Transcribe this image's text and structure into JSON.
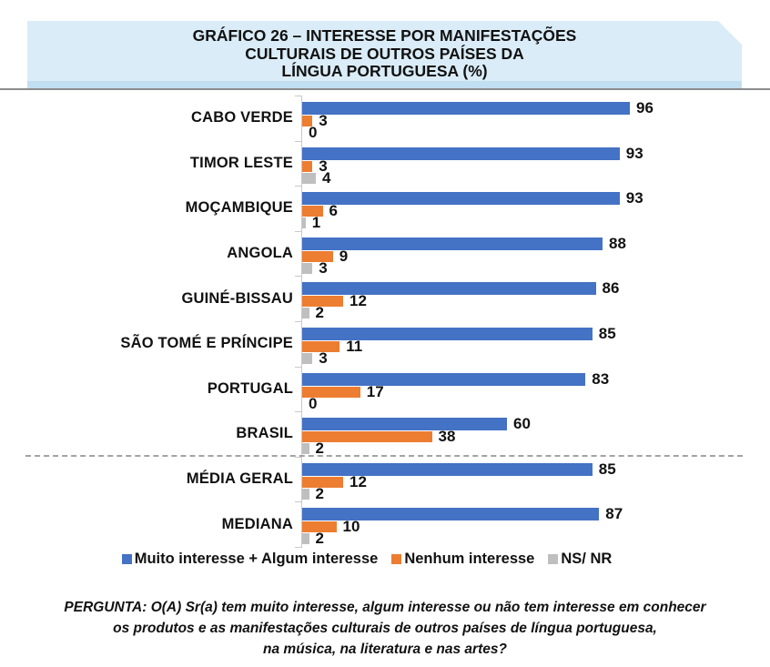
{
  "title": {
    "text": "GRÁFICO 26 – INTERESSE POR MANIFESTAÇÕES\nCULTURAIS DE OUTROS PAÍSES DA\nLÍNGUA PORTUGUESA (%)"
  },
  "chart_data": {
    "type": "bar",
    "orientation": "horizontal",
    "title": "GRÁFICO 26 – INTERESSE POR MANIFESTAÇÕES CULTURAIS DE OUTROS PAÍSES DA LÍNGUA PORTUGUESA (%)",
    "unit": "%",
    "categories": [
      "CABO VERDE",
      "TIMOR LESTE",
      "MOÇAMBIQUE",
      "ANGOLA",
      "GUINÉ-BISSAU",
      "SÃO TOMÉ E PRÍNCIPE",
      "PORTUGAL",
      "BRASIL",
      "MÉDIA GERAL",
      "MEDIANA"
    ],
    "series": [
      {
        "name": "Muito interesse + Algum interesse",
        "color": "#4472C4",
        "values": [
          96,
          93,
          93,
          88,
          86,
          85,
          83,
          60,
          85,
          87
        ]
      },
      {
        "name": "Nenhum interesse",
        "color": "#ED7D31",
        "values": [
          3,
          3,
          6,
          9,
          12,
          11,
          17,
          38,
          12,
          10
        ]
      },
      {
        "name": "NS/ NR",
        "color": "#BFBFBF",
        "values": [
          0,
          4,
          1,
          3,
          2,
          3,
          0,
          2,
          2,
          2
        ]
      }
    ],
    "xlim": [
      0,
      100
    ],
    "grid": false,
    "data_labels": true,
    "legend_position": "bottom",
    "separator_after_category": "BRASIL"
  },
  "footer": {
    "text": "PERGUNTA: O(A) Sr(a) tem muito interesse, algum interesse ou não tem interesse em conhecer\nos produtos e as manifestações culturais de outros países de língua portuguesa,\nna música, na literatura e nas artes?"
  }
}
